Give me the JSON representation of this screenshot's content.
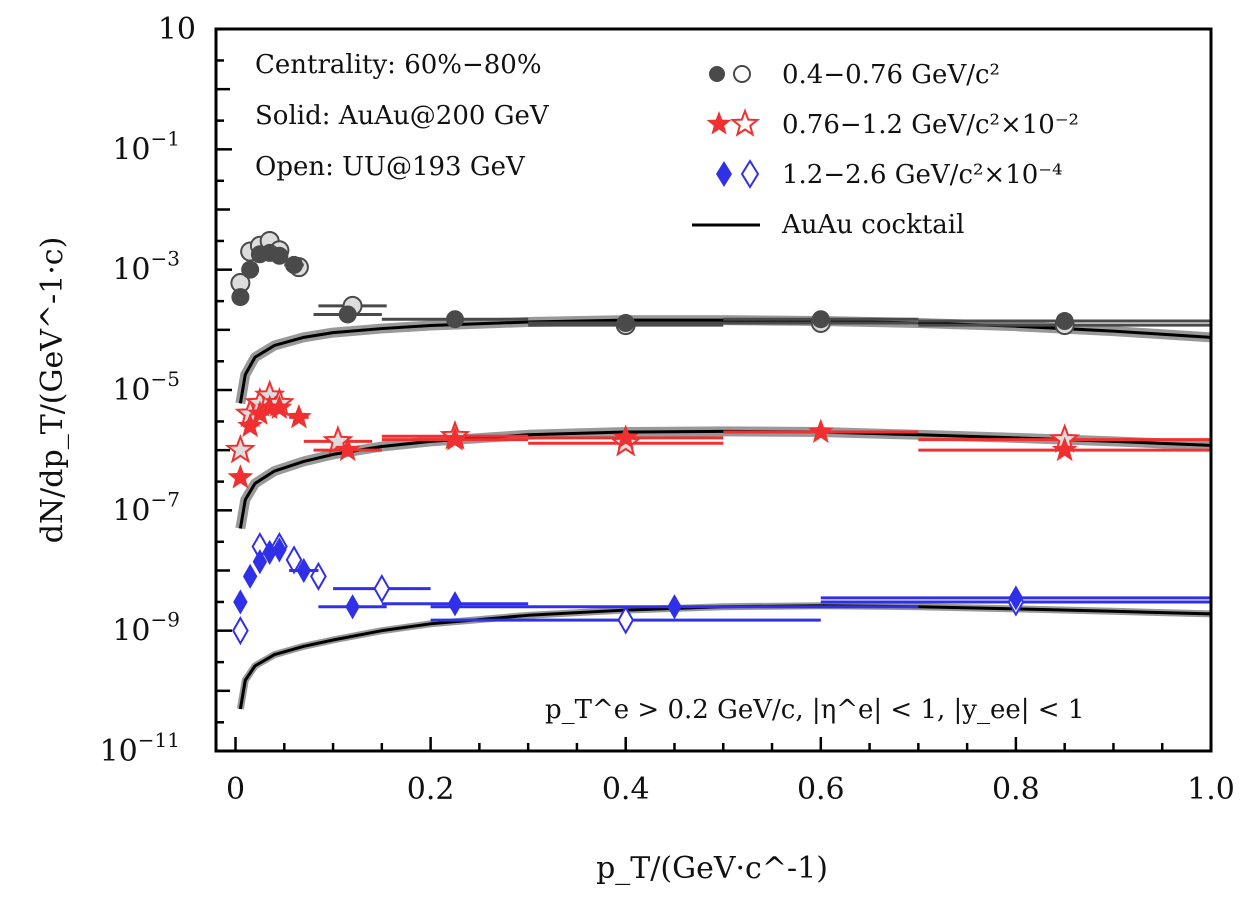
{
  "chart_data": {
    "type": "scatter",
    "title": "",
    "xlabel": "p_T/(GeV·c^-1)",
    "ylabel": "dN/dp_T/(GeV^-1·c)",
    "xlim": [
      -0.02,
      1.0
    ],
    "ylim": [
      1e-11,
      10
    ],
    "yscale": "log",
    "grid": false,
    "x_ticks": [
      {
        "v": 0,
        "label": "0"
      },
      {
        "v": 0.2,
        "label": "0.2"
      },
      {
        "v": 0.4,
        "label": "0.4"
      },
      {
        "v": 0.6,
        "label": "0.6"
      },
      {
        "v": 0.8,
        "label": "0.8"
      },
      {
        "v": 1.0,
        "label": "1.0"
      }
    ],
    "y_ticks": [
      {
        "exp": 1,
        "base": "10",
        "sup": ""
      },
      {
        "exp": -1,
        "base": "10",
        "sup": "−1"
      },
      {
        "exp": -3,
        "base": "10",
        "sup": "−3"
      },
      {
        "exp": -5,
        "base": "10",
        "sup": "−5"
      },
      {
        "exp": -7,
        "base": "10",
        "sup": "−7"
      },
      {
        "exp": -9,
        "base": "10",
        "sup": "−9"
      },
      {
        "exp": -11,
        "base": "10",
        "sup": "−11"
      }
    ],
    "annotations": {
      "centrality": "Centrality: 60%−80%",
      "solid": "Solid: AuAu@200 GeV",
      "open": "Open: UU@193 GeV",
      "cuts": "p_T^e > 0.2 GeV/c, |η^e| < 1, |y_ee| < 1"
    },
    "legend": {
      "placement": "top-right",
      "entries": [
        {
          "label": "0.4−0.76 GeV/c²",
          "marker": "circle",
          "color": "#4a4a4a"
        },
        {
          "label": "0.76−1.2  GeV/c²×10⁻²",
          "marker": "star",
          "color": "#f03030"
        },
        {
          "label": "1.2−2.6 GeV/c²×10⁻⁴",
          "marker": "diamond",
          "color": "#3030e8"
        },
        {
          "label": "AuAu cocktail",
          "marker": "line",
          "color": "#000000"
        }
      ]
    },
    "series": [
      {
        "name": "0.4−0.76 AuAu",
        "marker": "circle",
        "filled": true,
        "color": "#4a4a4a",
        "points": [
          {
            "x": 0.005,
            "y": 0.00035
          },
          {
            "x": 0.015,
            "y": 0.001
          },
          {
            "x": 0.025,
            "y": 0.0018
          },
          {
            "x": 0.035,
            "y": 0.0019
          },
          {
            "x": 0.045,
            "y": 0.0017
          },
          {
            "x": 0.06,
            "y": 0.0012,
            "xerr": 0.01
          },
          {
            "x": 0.115,
            "y": 0.00018,
            "xerr": 0.035
          },
          {
            "x": 0.225,
            "y": 0.00015,
            "xerr": 0.075
          },
          {
            "x": 0.4,
            "y": 0.00013,
            "xerr": 0.1
          },
          {
            "x": 0.6,
            "y": 0.00015,
            "xerr": 0.1
          },
          {
            "x": 0.85,
            "y": 0.00014,
            "xerr": 0.15
          }
        ]
      },
      {
        "name": "0.4−0.76 UU",
        "marker": "circle",
        "filled": false,
        "color": "#4a4a4a",
        "points": [
          {
            "x": 0.005,
            "y": 0.0006
          },
          {
            "x": 0.015,
            "y": 0.002
          },
          {
            "x": 0.025,
            "y": 0.0025
          },
          {
            "x": 0.035,
            "y": 0.003
          },
          {
            "x": 0.045,
            "y": 0.0021
          },
          {
            "x": 0.065,
            "y": 0.0011
          },
          {
            "x": 0.12,
            "y": 0.00025,
            "xerr": 0.035
          },
          {
            "x": 0.4,
            "y": 0.00012,
            "xerr": 0.1
          },
          {
            "x": 0.6,
            "y": 0.00013,
            "xerr": 0.1
          },
          {
            "x": 0.85,
            "y": 0.00012,
            "xerr": 0.15
          }
        ]
      },
      {
        "name": "0.76−1.2 AuAu",
        "marker": "star",
        "filled": true,
        "color": "#f03030",
        "points": [
          {
            "x": 0.005,
            "y": 3.5e-07
          },
          {
            "x": 0.015,
            "y": 2.5e-06
          },
          {
            "x": 0.025,
            "y": 4e-06
          },
          {
            "x": 0.035,
            "y": 5e-06
          },
          {
            "x": 0.045,
            "y": 5e-06
          },
          {
            "x": 0.065,
            "y": 3.5e-06,
            "xerr": 0.01
          },
          {
            "x": 0.115,
            "y": 1e-06,
            "xerr": 0.035
          },
          {
            "x": 0.225,
            "y": 1.5e-06,
            "xerr": 0.075
          },
          {
            "x": 0.4,
            "y": 1.6e-06,
            "xerr": 0.1
          },
          {
            "x": 0.6,
            "y": 2e-06,
            "xerr": 0.1
          },
          {
            "x": 0.85,
            "y": 1e-06,
            "xerr": 0.15
          }
        ]
      },
      {
        "name": "0.76−1.2 UU",
        "marker": "star",
        "filled": false,
        "color": "#f03030",
        "points": [
          {
            "x": 0.005,
            "y": 1e-06
          },
          {
            "x": 0.015,
            "y": 4e-06
          },
          {
            "x": 0.025,
            "y": 6e-06
          },
          {
            "x": 0.035,
            "y": 8e-06
          },
          {
            "x": 0.045,
            "y": 6e-06
          },
          {
            "x": 0.105,
            "y": 1.4e-06,
            "xerr": 0.035
          },
          {
            "x": 0.225,
            "y": 1.7e-06,
            "xerr": 0.075
          },
          {
            "x": 0.4,
            "y": 1.3e-06,
            "xerr": 0.1
          },
          {
            "x": 0.85,
            "y": 1.5e-06,
            "xerr": 0.15
          }
        ]
      },
      {
        "name": "1.2−2.6 AuAu",
        "marker": "diamond",
        "filled": true,
        "color": "#3030e8",
        "points": [
          {
            "x": 0.005,
            "y": 3e-09
          },
          {
            "x": 0.015,
            "y": 8e-09
          },
          {
            "x": 0.025,
            "y": 1.4e-08
          },
          {
            "x": 0.035,
            "y": 2e-08
          },
          {
            "x": 0.045,
            "y": 2.2e-08
          },
          {
            "x": 0.07,
            "y": 1e-08,
            "xerr": 0.015
          },
          {
            "x": 0.12,
            "y": 2.5e-09,
            "xerr": 0.035
          },
          {
            "x": 0.225,
            "y": 2.8e-09,
            "xerr": 0.075
          },
          {
            "x": 0.45,
            "y": 2.5e-09,
            "xerr": 0.25
          },
          {
            "x": 0.8,
            "y": 3.5e-09,
            "xerr": 0.2
          }
        ]
      },
      {
        "name": "1.2−2.6 UU",
        "marker": "diamond",
        "filled": false,
        "color": "#3030e8",
        "points": [
          {
            "x": 0.005,
            "y": 1e-09
          },
          {
            "x": 0.025,
            "y": 2.5e-08
          },
          {
            "x": 0.045,
            "y": 2.5e-08
          },
          {
            "x": 0.06,
            "y": 1.5e-08
          },
          {
            "x": 0.085,
            "y": 8e-09
          },
          {
            "x": 0.15,
            "y": 5e-09,
            "xerr": 0.05
          },
          {
            "x": 0.4,
            "y": 1.5e-09,
            "xerr": 0.2
          },
          {
            "x": 0.8,
            "y": 3e-09,
            "xerr": 0.2
          }
        ]
      }
    ],
    "cocktail": {
      "name": "AuAu cocktail",
      "color": "#000000",
      "band_color": "#999999",
      "curves": [
        {
          "scale": 1,
          "x": [
            0.005,
            0.01,
            0.02,
            0.04,
            0.07,
            0.1,
            0.15,
            0.2,
            0.3,
            0.4,
            0.5,
            0.6,
            0.7,
            0.8,
            0.9,
            1.0
          ],
          "y": [
            6e-06,
            1.8e-05,
            3.5e-05,
            5.5e-05,
            7.5e-05,
            9e-05,
            0.000105,
            0.000118,
            0.000135,
            0.000145,
            0.000145,
            0.00014,
            0.00013,
            0.000115,
            9.5e-05,
            7.5e-05
          ]
        },
        {
          "scale": 1,
          "x": [
            0.005,
            0.01,
            0.02,
            0.04,
            0.07,
            0.1,
            0.15,
            0.2,
            0.3,
            0.4,
            0.5,
            0.6,
            0.7,
            0.8,
            0.9,
            1.0
          ],
          "y": [
            5e-08,
            1.5e-07,
            2.8e-07,
            4.5e-07,
            6.5e-07,
            8.5e-07,
            1.15e-06,
            1.4e-06,
            1.8e-06,
            2e-06,
            2.05e-06,
            2e-06,
            1.8e-06,
            1.6e-06,
            1.4e-06,
            1.2e-06
          ]
        },
        {
          "scale": 1,
          "x": [
            0.005,
            0.01,
            0.02,
            0.04,
            0.07,
            0.1,
            0.15,
            0.2,
            0.3,
            0.4,
            0.5,
            0.6,
            0.7,
            0.8,
            0.9,
            1.0
          ],
          "y": [
            5e-11,
            1.5e-10,
            2.6e-10,
            4e-10,
            5.5e-10,
            7e-10,
            1e-09,
            1.3e-09,
            1.8e-09,
            2.2e-09,
            2.5e-09,
            2.6e-09,
            2.5e-09,
            2.3e-09,
            2.1e-09,
            1.9e-09
          ]
        }
      ]
    }
  }
}
